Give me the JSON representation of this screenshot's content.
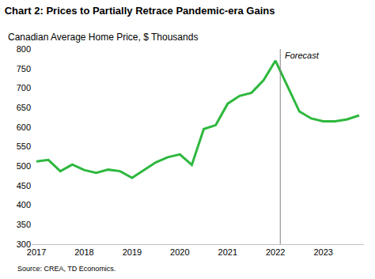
{
  "chart_data": {
    "type": "line",
    "title": "Chart 2: Prices to Partially Retrace Pandemic-era Gains",
    "subtitle": "Canadian Average Home Price, $ Thousands",
    "note": "Source: CREA, TD Economics.",
    "annotations": [
      {
        "text": "Forecast",
        "x": 2022.1
      }
    ],
    "x": [
      2017,
      2017.25,
      2017.5,
      2017.75,
      2018,
      2018.25,
      2018.5,
      2018.75,
      2019,
      2019.25,
      2019.5,
      2019.75,
      2020,
      2020.25,
      2020.5,
      2020.75,
      2021,
      2021.25,
      2021.5,
      2021.75,
      2022,
      2022.25,
      2022.5,
      2022.75,
      2023,
      2023.25,
      2023.5,
      2023.75
    ],
    "values": [
      512,
      516,
      487,
      504,
      490,
      483,
      491,
      487,
      470,
      490,
      510,
      523,
      530,
      503,
      595,
      605,
      660,
      680,
      688,
      720,
      770,
      705,
      640,
      622,
      615,
      615,
      620,
      630
    ],
    "color": "#2db83d",
    "xlim": [
      2016.9,
      2023.85
    ],
    "xticks": [
      2017,
      2018,
      2019,
      2020,
      2021,
      2022,
      2023
    ],
    "ylim": [
      300,
      800
    ],
    "yticks": [
      300,
      350,
      400,
      450,
      500,
      550,
      600,
      650,
      700,
      750,
      800
    ],
    "grid": false
  }
}
